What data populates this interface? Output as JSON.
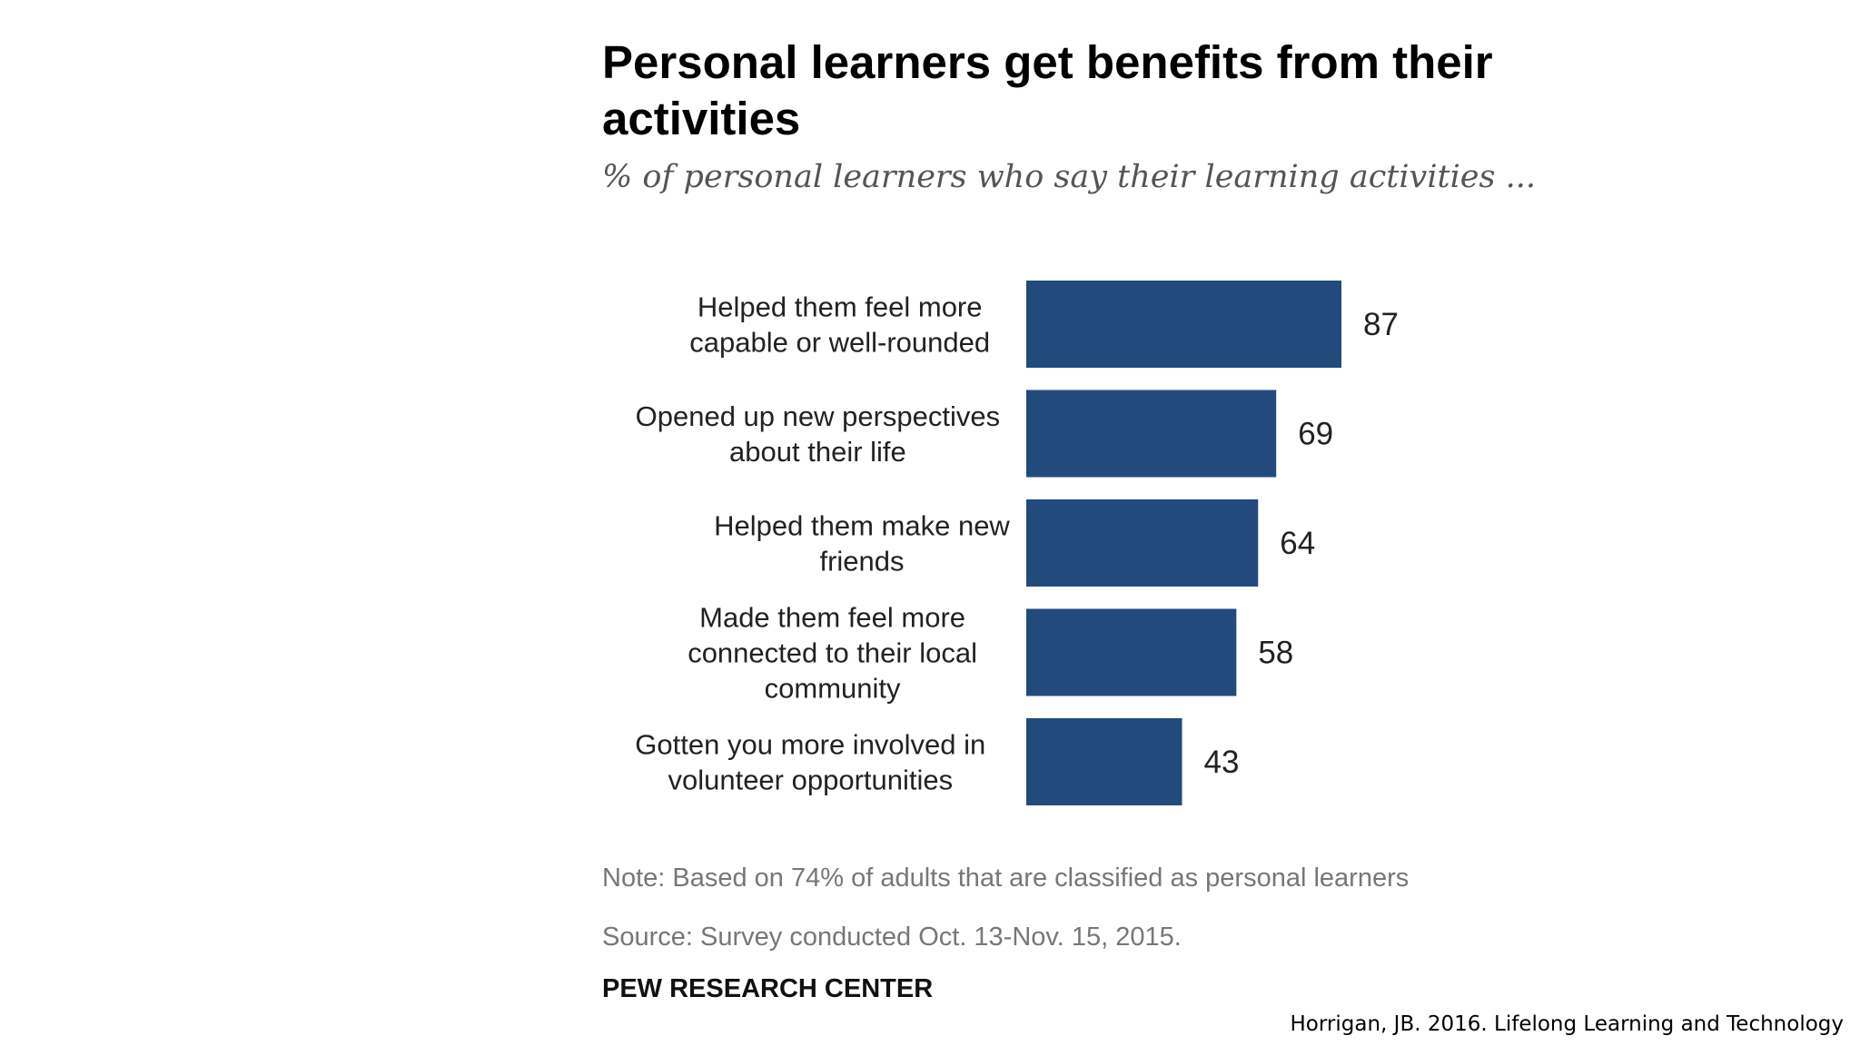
{
  "chart_data": {
    "type": "bar",
    "orientation": "horizontal",
    "title": "Personal learners get benefits from their activities",
    "subtitle": "% of personal learners who say their learning activities ...",
    "categories": [
      [
        "Helped them feel more",
        "capable or well-rounded"
      ],
      [
        "Opened up new perspectives",
        "about their life"
      ],
      [
        "Helped them make new",
        "friends"
      ],
      [
        "Made them feel more",
        "connected to their local",
        "community"
      ],
      [
        "Gotten you more involved in",
        "volunteer opportunities"
      ]
    ],
    "values": [
      87,
      69,
      64,
      58,
      43
    ],
    "value_labels": [
      "87",
      "69",
      "64",
      "58",
      "43"
    ],
    "xlim": [
      0,
      100
    ],
    "grid": false,
    "bar_color": "#224a7d"
  },
  "footer": {
    "note": "Note: Based on 74% of adults that are classified as personal learners",
    "source": "Source: Survey conducted Oct. 13-Nov. 15, 2015.",
    "organization": "PEW RESEARCH CENTER"
  },
  "citation": "Horrigan, JB. 2016. Lifelong Learning and Technology"
}
